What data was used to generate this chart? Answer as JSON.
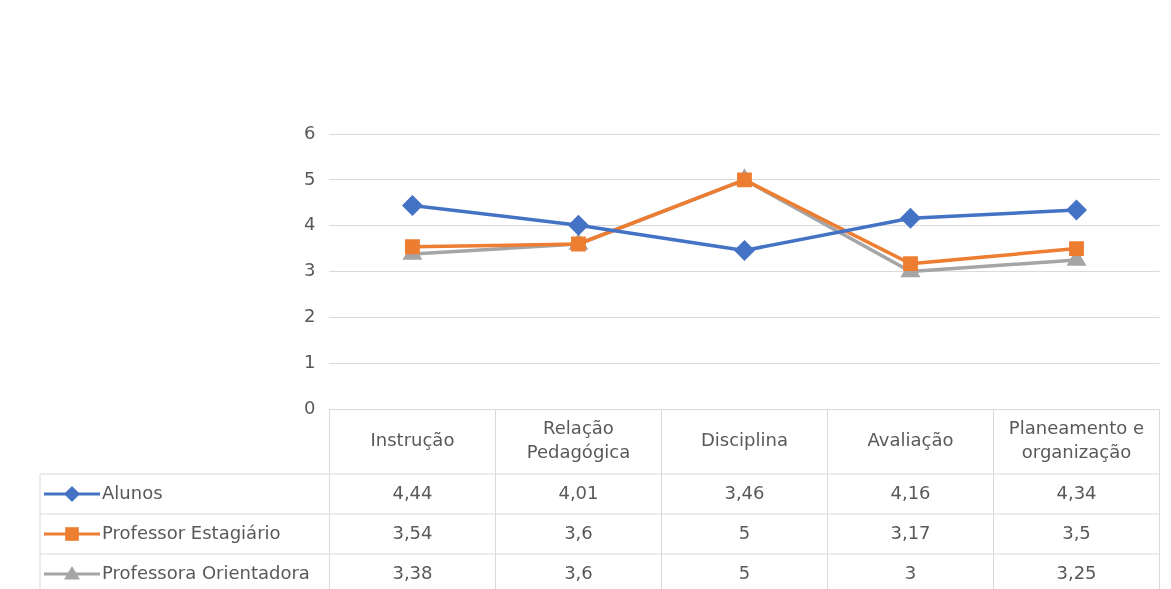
{
  "chart_data": {
    "type": "line",
    "categories": [
      "Instrução",
      "Relação Pedagógica",
      "Disciplina",
      "Avaliação",
      "Planeamento e organização"
    ],
    "series": [
      {
        "name": "Alunos",
        "color": "#4472c4",
        "marker": "diamond",
        "values": [
          4.44,
          4.01,
          3.46,
          4.16,
          4.34
        ],
        "value_labels": [
          "4,44",
          "4,01",
          "3,46",
          "4,16",
          "4,34"
        ]
      },
      {
        "name": "Professor Estagiário",
        "color": "#ed7d31",
        "marker": "square",
        "values": [
          3.54,
          3.6,
          5,
          3.17,
          3.5
        ],
        "value_labels": [
          "3,54",
          "3,6",
          "5",
          "3,17",
          "3,5"
        ]
      },
      {
        "name": "Professora Orientadora",
        "color": "#a5a5a5",
        "marker": "triangle",
        "values": [
          3.38,
          3.6,
          5,
          3,
          3.25
        ],
        "value_labels": [
          "3,38",
          "3,6",
          "5",
          "3",
          "3,25"
        ]
      }
    ],
    "ylim": [
      0,
      6
    ],
    "yticks": [
      0,
      1,
      2,
      3,
      4,
      5,
      6
    ],
    "grid": "y",
    "legend": "bottom"
  }
}
